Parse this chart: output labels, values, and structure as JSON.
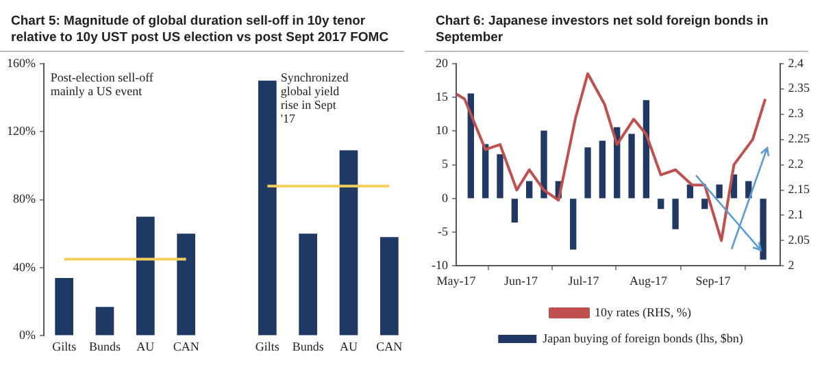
{
  "chart_data": [
    {
      "type": "bar",
      "title": "Chart 5: Magnitude of global duration sell-off in 10y tenor relative to 10y UST post US election vs post Sept 2017 FOMC",
      "categories": [
        "Gilts",
        "Bunds",
        "AU",
        "CAN",
        null,
        "Gilts",
        "Bunds",
        "AU",
        "CAN"
      ],
      "series": [
        {
          "color": "#1f3864",
          "values": [
            34,
            17,
            70,
            60,
            null,
            150,
            60,
            109,
            58
          ]
        },
        {
          "type": "line",
          "color": "#f2cf5b",
          "values": [
            45,
            45,
            45,
            45,
            null,
            null,
            null,
            null,
            null
          ]
        },
        {
          "type": "line",
          "color": "#f2cf5b",
          "values": [
            null,
            null,
            null,
            null,
            null,
            88,
            88,
            88,
            88
          ]
        }
      ],
      "ylim": [
        0,
        160
      ],
      "yticks": [
        {
          "value": 0,
          "label": "0%"
        },
        {
          "value": 40,
          "label": "40%"
        },
        {
          "value": 80,
          "label": "80%"
        },
        {
          "value": 120,
          "label": "120%"
        },
        {
          "value": 160,
          "label": "160%"
        }
      ],
      "grid": false,
      "legend": false,
      "marker": "none",
      "annotations": [
        "Post-election sell-off mainly a US event",
        "Synchronized global yield rise in Sept '17"
      ]
    },
    {
      "type": "bar",
      "title": "Chart 6: Japanese investors net sold foreign bonds in September",
      "series": [
        {
          "name": "Japan buying of foreign bonds (lhs, $bn)",
          "color": "#1f3864",
          "x": [
            "2017-05-08",
            "2017-05-15",
            "2017-05-22",
            "2017-05-29",
            "2017-06-05",
            "2017-06-12",
            "2017-06-19",
            "2017-06-26",
            "2017-07-03",
            "2017-07-10",
            "2017-07-17",
            "2017-07-24",
            "2017-07-31",
            "2017-08-07",
            "2017-08-14",
            "2017-08-21",
            "2017-08-28",
            "2017-09-04",
            "2017-09-11",
            "2017-09-18",
            "2017-09-25"
          ],
          "values": [
            15.5,
            8,
            6.5,
            -3.5,
            2.5,
            10,
            2.5,
            -7.5,
            7.5,
            8.5,
            10.5,
            9.5,
            14.5,
            -1.5,
            -4.5,
            2,
            -1.5,
            2,
            3.5,
            2.5,
            -9
          ]
        },
        {
          "name": "10y rates (RHS, %)",
          "type": "line",
          "axis": "y2",
          "color": "#c0504d",
          "x": [
            "2017-05-01",
            "2017-05-05",
            "2017-05-15",
            "2017-05-22",
            "2017-05-30",
            "2017-06-05",
            "2017-06-12",
            "2017-06-19",
            "2017-06-27",
            "2017-07-03",
            "2017-07-11",
            "2017-07-17",
            "2017-07-25",
            "2017-07-31",
            "2017-08-07",
            "2017-08-14",
            "2017-08-22",
            "2017-08-28",
            "2017-09-05",
            "2017-09-11",
            "2017-09-20",
            "2017-09-26"
          ],
          "values": [
            2.34,
            2.33,
            2.23,
            2.24,
            2.15,
            2.19,
            2.15,
            2.13,
            2.29,
            2.38,
            2.32,
            2.24,
            2.29,
            2.26,
            2.18,
            2.19,
            2.16,
            2.16,
            2.05,
            2.2,
            2.25,
            2.33
          ]
        }
      ],
      "xlim": [
        "2017-05-01",
        "2017-10-03"
      ],
      "xticks": [
        {
          "value": "2017-05-01",
          "label": "May-17"
        },
        {
          "value": "2017-06-01",
          "label": "Jun-17"
        },
        {
          "value": "2017-07-01",
          "label": "Jul-17"
        },
        {
          "value": "2017-08-01",
          "label": "Aug-17"
        },
        {
          "value": "2017-09-01",
          "label": "Sep-17"
        }
      ],
      "ylim": [
        -10,
        20
      ],
      "yticks": [
        -10,
        -5,
        0,
        5,
        10,
        15,
        20
      ],
      "y2lim": [
        2,
        2.4
      ],
      "y2ticks": [
        2,
        2.05,
        2.1,
        2.15,
        2.2,
        2.25,
        2.3,
        2.35,
        2.4
      ],
      "grid": false,
      "legend": "bottom",
      "marker": "none"
    }
  ]
}
